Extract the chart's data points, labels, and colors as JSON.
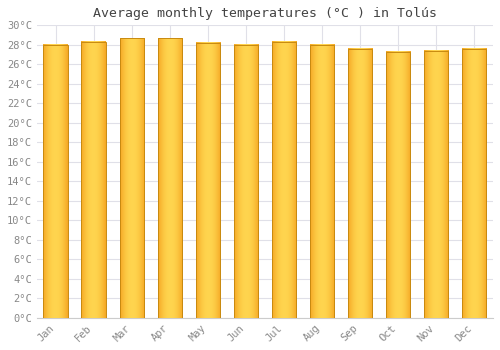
{
  "title": "Average monthly temperatures (°C ) in Tolús",
  "months": [
    "Jan",
    "Feb",
    "Mar",
    "Apr",
    "May",
    "Jun",
    "Jul",
    "Aug",
    "Sep",
    "Oct",
    "Nov",
    "Dec"
  ],
  "temperatures": [
    28.0,
    28.3,
    28.7,
    28.7,
    28.2,
    28.0,
    28.3,
    28.0,
    27.6,
    27.3,
    27.4,
    27.6
  ],
  "bar_color_center": "#FFD54F",
  "bar_color_edge": "#F5A623",
  "background_color": "#ffffff",
  "plot_bg_color": "#ffffff",
  "grid_color": "#e0e0e8",
  "ylim": [
    0,
    30
  ],
  "ytick_max": 30,
  "ytick_step": 2,
  "title_fontsize": 9.5,
  "tick_fontsize": 7.5,
  "font_family": "monospace",
  "bar_width": 0.65
}
